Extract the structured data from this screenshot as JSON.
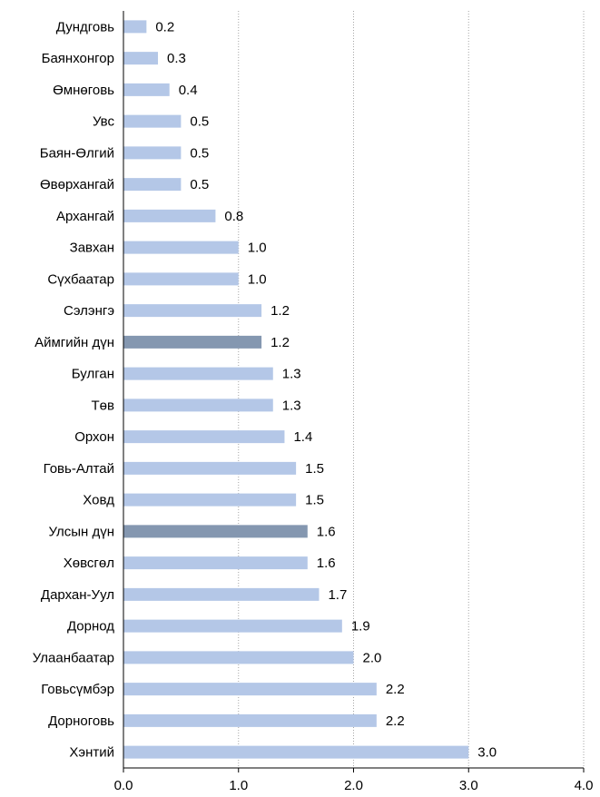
{
  "chart_data": {
    "type": "bar",
    "orientation": "horizontal",
    "title": "",
    "xlabel": "",
    "ylabel": "",
    "xlim": [
      0,
      4
    ],
    "x_ticks": [
      "0.0",
      "1.0",
      "2.0",
      "3.0",
      "4.0"
    ],
    "grid": "vertical dotted",
    "legend": "none",
    "colors": {
      "default": "#b4c7e7",
      "highlight": "#8497b0"
    },
    "bars": [
      {
        "category": "Дундговь",
        "value": 0.2,
        "label": "0.2",
        "highlight": false
      },
      {
        "category": "Баянхонгор",
        "value": 0.3,
        "label": "0.3",
        "highlight": false
      },
      {
        "category": "Өмнөговь",
        "value": 0.4,
        "label": "0.4",
        "highlight": false
      },
      {
        "category": "Увс",
        "value": 0.5,
        "label": "0.5",
        "highlight": false
      },
      {
        "category": "Баян-Өлгий",
        "value": 0.5,
        "label": "0.5",
        "highlight": false
      },
      {
        "category": "Өвөрхангай",
        "value": 0.5,
        "label": "0.5",
        "highlight": false
      },
      {
        "category": "Архангай",
        "value": 0.8,
        "label": "0.8",
        "highlight": false
      },
      {
        "category": "Завхан",
        "value": 1.0,
        "label": "1.0",
        "highlight": false
      },
      {
        "category": "Сүхбаатар",
        "value": 1.0,
        "label": "1.0",
        "highlight": false
      },
      {
        "category": "Сэлэнгэ",
        "value": 1.2,
        "label": "1.2",
        "highlight": false
      },
      {
        "category": "Аймгийн дүн",
        "value": 1.2,
        "label": "1.2",
        "highlight": true
      },
      {
        "category": "Булган",
        "value": 1.3,
        "label": "1.3",
        "highlight": false
      },
      {
        "category": "Төв",
        "value": 1.3,
        "label": "1.3",
        "highlight": false
      },
      {
        "category": "Орхон",
        "value": 1.4,
        "label": "1.4",
        "highlight": false
      },
      {
        "category": "Говь-Алтай",
        "value": 1.5,
        "label": "1.5",
        "highlight": false
      },
      {
        "category": "Ховд",
        "value": 1.5,
        "label": "1.5",
        "highlight": false
      },
      {
        "category": "Улсын дүн",
        "value": 1.6,
        "label": "1.6",
        "highlight": true
      },
      {
        "category": "Хөвсгөл",
        "value": 1.6,
        "label": "1.6",
        "highlight": false
      },
      {
        "category": "Дархан-Уул",
        "value": 1.7,
        "label": "1.7",
        "highlight": false
      },
      {
        "category": "Дорнод",
        "value": 1.9,
        "label": "1.9",
        "highlight": false
      },
      {
        "category": "Улаанбаатар",
        "value": 2.0,
        "label": "2.0",
        "highlight": false
      },
      {
        "category": "Говьсүмбэр",
        "value": 2.2,
        "label": "2.2",
        "highlight": false
      },
      {
        "category": "Дорноговь",
        "value": 2.2,
        "label": "2.2",
        "highlight": false
      },
      {
        "category": "Хэнтий",
        "value": 3.0,
        "label": "3.0",
        "highlight": false
      }
    ]
  }
}
